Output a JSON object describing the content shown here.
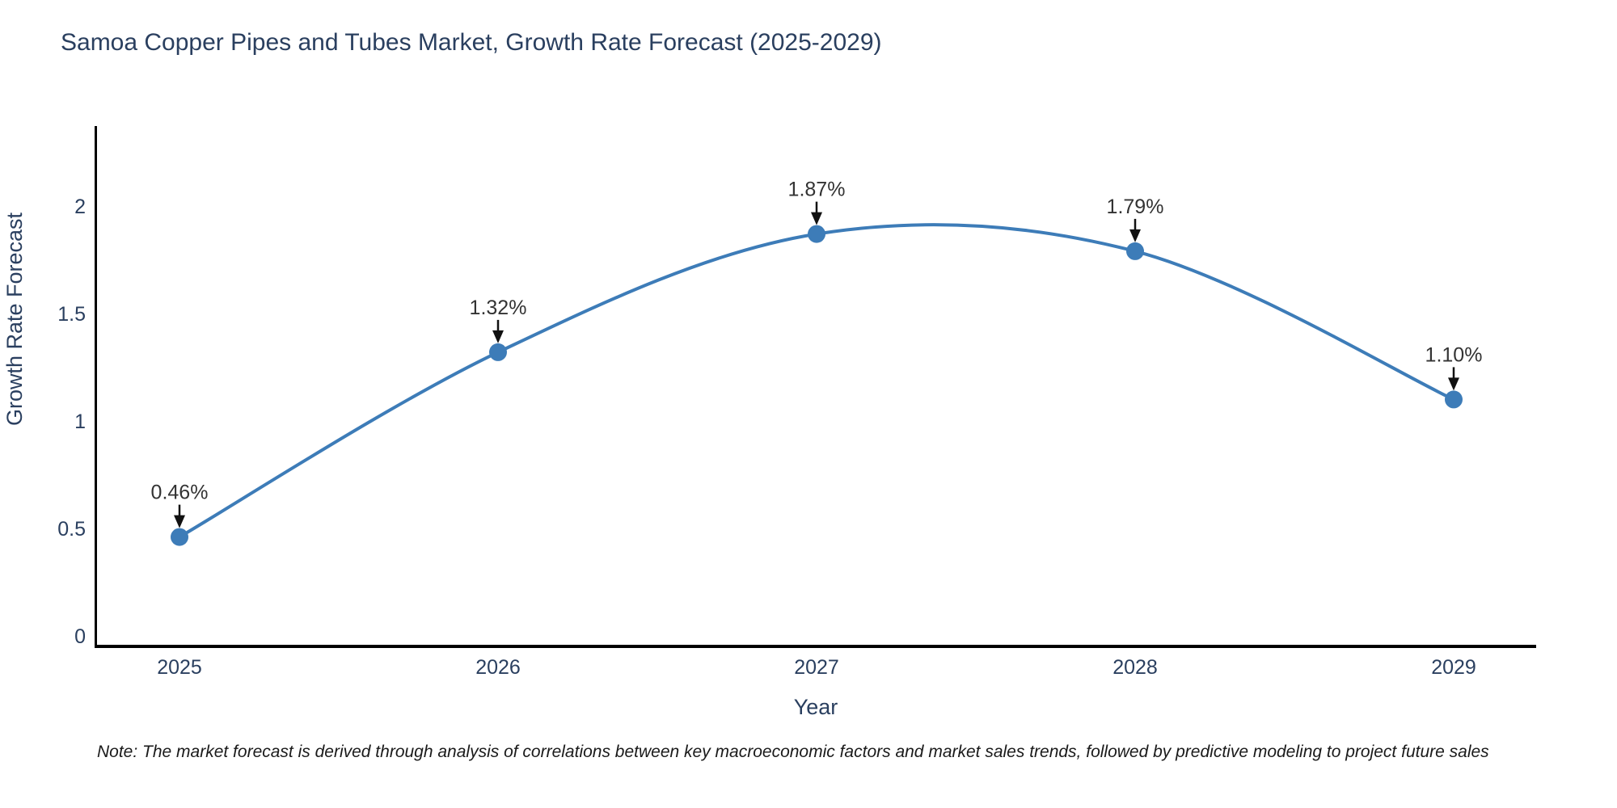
{
  "chart_data": {
    "type": "line",
    "title": "Samoa Copper Pipes and Tubes Market, Growth Rate Forecast (2025-2029)",
    "xlabel": "Year",
    "ylabel": "Growth Rate Forecast",
    "x": [
      2025,
      2026,
      2027,
      2028,
      2029
    ],
    "series": [
      {
        "name": "Growth Rate Forecast",
        "values": [
          0.46,
          1.32,
          1.87,
          1.79,
          1.1
        ]
      }
    ],
    "point_labels": [
      "0.46%",
      "1.32%",
      "1.87%",
      "1.79%",
      "1.10%"
    ],
    "xticks": [
      "2025",
      "2026",
      "2027",
      "2028",
      "2029"
    ],
    "yticks": [
      0,
      0.5,
      1,
      1.5,
      2
    ],
    "xlim": [
      2024.74,
      2029.26
    ],
    "ylim": [
      -0.05,
      2.36
    ],
    "line_shape": "spline",
    "grid": false,
    "legend": "none",
    "annotation_style": "arrow-down-to-point"
  },
  "note": "Note: The market forecast is derived through analysis of correlations between key macroeconomic factors and market sales trends, followed by predictive modeling to project future sales",
  "colors": {
    "line": "#3d7cb8",
    "marker": "#3d7cb8",
    "axis_line": "#000000",
    "text": "#2a3f5f",
    "annotation_text": "#333333",
    "arrow": "#111111",
    "note_text": "#1a1a1a",
    "background": "#ffffff"
  }
}
